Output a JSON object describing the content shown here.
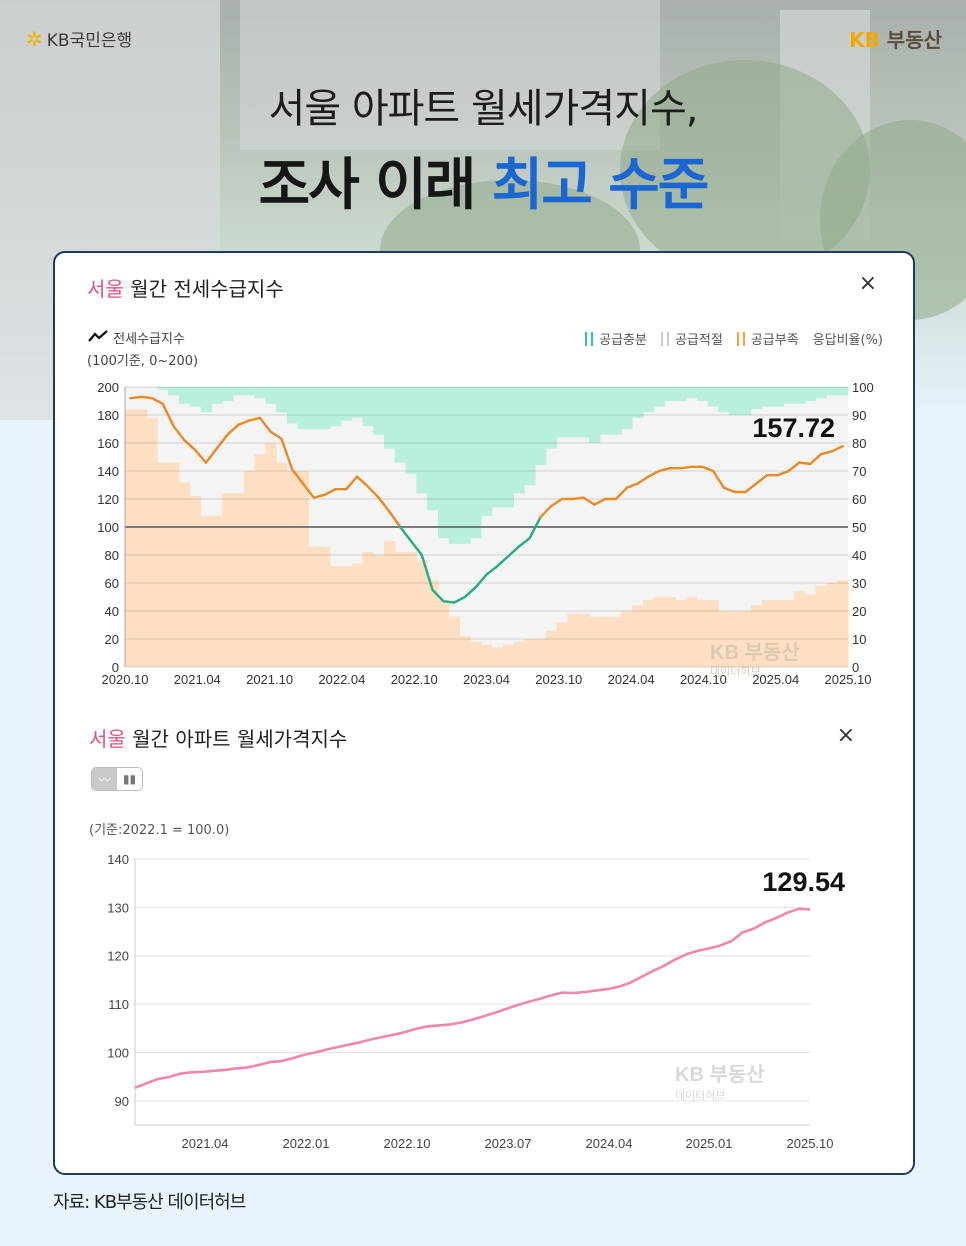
{
  "header": {
    "logo_left": "KB국민은행",
    "logo_left_icon": "kb-star-icon",
    "logo_right_kb": "KB",
    "logo_right_text": "부동산",
    "headline_line1": "서울 아파트 월세가격지수,",
    "headline_line2_plain": "조사 이래",
    "headline_line2_highlight": "최고 수준",
    "highlight_color": "#1a66d2"
  },
  "chart1": {
    "title_region": "서울",
    "title_rest": "월간 전세수급지수",
    "close_label": "×",
    "legend_line_label": "전세수급지수",
    "legend_line_sub": "(100기준, 0~200)",
    "legend_items": [
      {
        "label": "공급충분",
        "color": "#2ec79b"
      },
      {
        "label": "공급적절",
        "color": "#cccccc"
      },
      {
        "label": "공급부족",
        "color": "#f2a33a"
      }
    ],
    "legend_right_axis": "응답비율(%)",
    "callout": "157.72",
    "watermark_main": "KB 부동산",
    "watermark_sub": "데이터허브"
  },
  "chart2": {
    "title_region": "서울",
    "title_rest": "월간 아파트 월세가격지수",
    "close_label": "×",
    "toggle_line": "line-chart-icon",
    "toggle_bar": "bar-chart-icon",
    "basis": "(기준:2022.1 = 100.0)",
    "callout": "129.54",
    "watermark_main": "KB 부동산",
    "watermark_sub": "데이터허브"
  },
  "footer": {
    "source": "자료: KB부동산 데이터허브"
  },
  "chart_data": [
    {
      "type": "line",
      "title": "서울 월간 전세수급지수",
      "xlabel": "",
      "ylabel": "전세수급지수 (100기준, 0~200)",
      "y2label": "응답비율(%)",
      "ylim": [
        0,
        200
      ],
      "y2lim": [
        0,
        100
      ],
      "yticks": [
        0,
        20,
        40,
        60,
        80,
        100,
        120,
        140,
        160,
        180,
        200
      ],
      "y2ticks": [
        0,
        10,
        20,
        30,
        40,
        50,
        60,
        70,
        80,
        90,
        100
      ],
      "xticks": [
        "2020.10",
        "2021.04",
        "2021.10",
        "2022.04",
        "2022.10",
        "2023.04",
        "2023.10",
        "2024.04",
        "2024.10",
        "2025.04",
        "2025.10"
      ],
      "reference_line": 100,
      "grid": true,
      "legend_position": "top-right",
      "callout": 157.72,
      "series": [
        {
          "name": "전세수급지수",
          "color_above_100": "#ea8a25",
          "color_below_100": "#23b07e",
          "values": [
            192,
            193,
            192,
            188,
            172,
            162,
            155,
            146,
            156,
            166,
            173,
            176,
            178,
            168,
            163,
            141,
            131,
            121,
            123,
            127,
            127,
            136,
            129,
            121,
            111,
            100,
            90,
            80,
            55,
            47,
            46,
            50,
            57,
            66,
            72,
            79,
            86,
            92,
            107,
            115,
            120,
            120,
            121,
            116,
            120,
            120,
            128,
            131,
            136,
            140,
            142,
            142,
            143,
            143,
            140,
            128,
            125,
            125,
            131,
            137,
            137,
            140,
            146,
            145,
            152,
            154,
            157.72
          ]
        },
        {
          "name": "공급부족 (응답비율%)",
          "type": "area",
          "color": "#fde0c3",
          "values": [
            92,
            92,
            89,
            73,
            73,
            66,
            61,
            54,
            54,
            62,
            62,
            70,
            76,
            80,
            73,
            70,
            70,
            43,
            43,
            36,
            36,
            37,
            41,
            40,
            45,
            41,
            41,
            38,
            31,
            24,
            18,
            11,
            9,
            8,
            7,
            8,
            9,
            10,
            10,
            13,
            16,
            19,
            19,
            18,
            18,
            18,
            20,
            22,
            24,
            25,
            25,
            24,
            25,
            24,
            24,
            20,
            20,
            20,
            22,
            24,
            24,
            24,
            27,
            26,
            29,
            30,
            31
          ]
        },
        {
          "name": "공급충분 (응답비율%)",
          "type": "area",
          "color": "#b8f0dd",
          "values": [
            0,
            0,
            0,
            1,
            3,
            6,
            7,
            9,
            6,
            5,
            3,
            3,
            4,
            6,
            9,
            13,
            15,
            15,
            15,
            14,
            12,
            11,
            14,
            17,
            22,
            27,
            31,
            38,
            44,
            54,
            56,
            56,
            54,
            46,
            43,
            43,
            38,
            35,
            28,
            22,
            18,
            18,
            18,
            20,
            17,
            17,
            15,
            11,
            9,
            7,
            5,
            5,
            4,
            5,
            7,
            9,
            10,
            10,
            8,
            7,
            7,
            6,
            6,
            5,
            4,
            3,
            3
          ]
        }
      ]
    },
    {
      "type": "line",
      "title": "서울 월간 아파트 월세가격지수",
      "xlabel": "",
      "ylabel": "(기준:2022.1 = 100.0)",
      "ylim": [
        85,
        140
      ],
      "yticks": [
        90,
        100,
        110,
        120,
        130,
        140
      ],
      "xticks": [
        "2021.04",
        "2022.01",
        "2022.10",
        "2023.07",
        "2024.04",
        "2025.01",
        "2025.10"
      ],
      "grid": true,
      "callout": 129.54,
      "series": [
        {
          "name": "월세가격지수",
          "color": "#ef86ad",
          "values": [
            92.7,
            93.6,
            94.5,
            94.9,
            95.6,
            95.9,
            96.0,
            96.2,
            96.4,
            96.7,
            96.9,
            97.4,
            98.0,
            98.2,
            98.8,
            99.5,
            100.0,
            100.6,
            101.1,
            101.6,
            102.1,
            102.7,
            103.2,
            103.7,
            104.2,
            104.9,
            105.4,
            105.6,
            105.8,
            106.2,
            106.8,
            107.5,
            108.2,
            109.0,
            109.8,
            110.5,
            111.1,
            111.8,
            112.4,
            112.3,
            112.5,
            112.8,
            113.1,
            113.6,
            114.4,
            115.6,
            116.8,
            117.9,
            119.2,
            120.3,
            121.0,
            121.5,
            122.1,
            123.0,
            124.8,
            125.6,
            126.9,
            127.8,
            128.9,
            129.7,
            129.54
          ]
        }
      ]
    }
  ]
}
